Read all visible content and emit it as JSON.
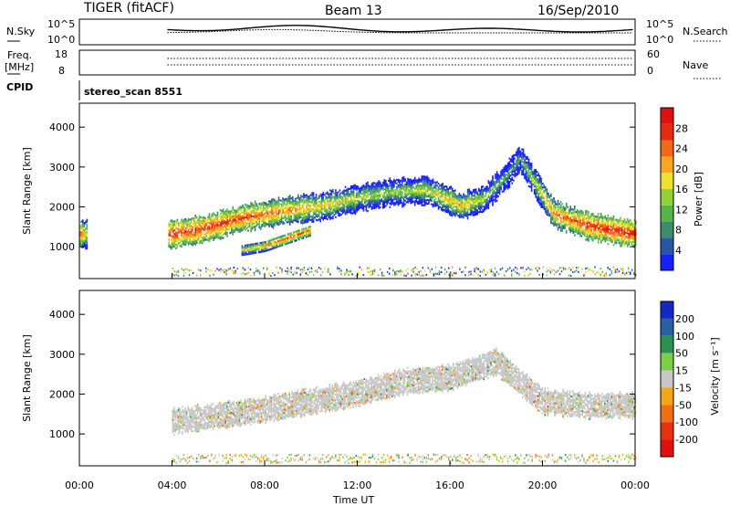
{
  "header": {
    "radar": "TIGER (fitACF)",
    "beam": "Beam 13",
    "date": "16/Sep/2010"
  },
  "top_panels": {
    "nsky_label": "N.Sky",
    "nsky_ticks": [
      "10^5",
      "10^0"
    ],
    "nsearch_label": "N.Search",
    "freq_label_1": "Freq.",
    "freq_label_2": "[MHz]",
    "freq_ticks": [
      "18",
      "8"
    ],
    "nave_label": "Nave",
    "nave_ticks": [
      "60",
      "0"
    ],
    "cpid_label": "CPID",
    "cpid_value": "stereo_scan 8551"
  },
  "chart_data": [
    {
      "type": "heatmap",
      "panel": "power",
      "xlabel": "",
      "ylabel": "Slant Range [km]",
      "x_ticks": [
        "00:00",
        "04:00",
        "08:00",
        "12:00",
        "16:00",
        "20:00",
        "00:00"
      ],
      "y_ticks": [
        1000,
        2000,
        3000,
        4000
      ],
      "ylim": [
        200,
        4600
      ],
      "colorbar_label": "Power [dB]",
      "colorbar_ticks": [
        4,
        8,
        12,
        16,
        20,
        24,
        28
      ],
      "colorbar_colors": [
        "#1820ff",
        "#2a56a8",
        "#3d8c6e",
        "#58b44a",
        "#8fd23a",
        "#f0e030",
        "#f8a820",
        "#f06818",
        "#e82a10",
        "#e01010"
      ],
      "bands": [
        {
          "note": "main scatter band",
          "t": [
            0.0,
            1.0,
            4.0,
            5.5,
            7.0,
            9.0,
            10.5,
            12.0,
            13.5,
            15.0,
            16.5,
            17.5,
            18.5,
            19.0,
            20.5,
            22.0,
            24.0
          ],
          "range_center": [
            1300,
            1300,
            1300,
            1450,
            1700,
            1900,
            2000,
            2200,
            2350,
            2400,
            2000,
            2200,
            2800,
            3200,
            1800,
            1500,
            1300
          ],
          "power_db": [
            24,
            0,
            26,
            26,
            25,
            22,
            18,
            16,
            14,
            16,
            20,
            14,
            10,
            10,
            22,
            26,
            27
          ]
        },
        {
          "note": "lower arc",
          "t": [
            7.0,
            8.0,
            9.0,
            10.0
          ],
          "range_center": [
            900,
            1000,
            1200,
            1400
          ],
          "power_db": [
            16,
            20,
            24,
            22
          ]
        }
      ]
    },
    {
      "type": "heatmap",
      "panel": "velocity",
      "xlabel": "Time UT",
      "ylabel": "Slant Range [km]",
      "x_ticks": [
        "00:00",
        "04:00",
        "08:00",
        "12:00",
        "16:00",
        "20:00",
        "00:00"
      ],
      "y_ticks": [
        1000,
        2000,
        3000,
        4000
      ],
      "ylim": [
        200,
        4600
      ],
      "colorbar_label": "Velocity [m s⁻¹]",
      "colorbar_ticks": [
        200,
        100,
        50,
        15,
        -15,
        -50,
        -100,
        -200
      ],
      "colorbar_colors": [
        "#1428c8",
        "#2a60a0",
        "#2e9050",
        "#7ad048",
        "#c8c8c8",
        "#f0a818",
        "#f07018",
        "#e83010",
        "#e01010"
      ],
      "bands": [
        {
          "note": "main scatter band (mostly ground scatter)",
          "t": [
            4.0,
            6.0,
            8.0,
            10.0,
            12.0,
            14.0,
            16.0,
            18.0,
            20.0,
            22.0,
            24.0
          ],
          "range_center": [
            1300,
            1450,
            1600,
            1800,
            2000,
            2300,
            2400,
            2800,
            1800,
            1700,
            1700
          ],
          "velocity": [
            0,
            0,
            -20,
            -30,
            0,
            -10,
            0,
            0,
            -50,
            0,
            0
          ]
        }
      ]
    }
  ]
}
